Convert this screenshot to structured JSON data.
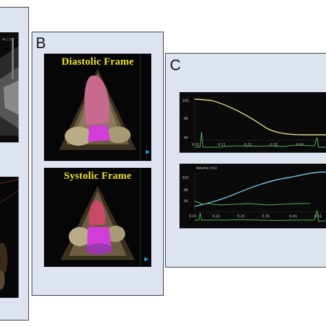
{
  "panels": {
    "a": {
      "scale_text": "MI 1.0"
    },
    "b": {
      "letter": "B",
      "diastolic_label": "Diastolic Frame",
      "systolic_label": "Systolic Frame"
    },
    "c": {
      "letter": "C",
      "top_plot": {
        "y_ticks": [
          "192",
          "96",
          "40"
        ],
        "x_ticks": [
          "0.01",
          "0.11",
          "0.21",
          "0.31",
          "0.41"
        ]
      },
      "bottom_plot": {
        "title": "Volume (ml)",
        "y_ticks": [
          "192",
          "96",
          "56"
        ],
        "x_ticks": [
          "0.01",
          "0.11",
          "0.21",
          "0.31",
          "0.41",
          "0.51"
        ]
      }
    }
  },
  "colors": {
    "panel_bg": "#dde4ef",
    "label_yellow": "#f3e11c",
    "lv_pink": "#c86a8e",
    "la_magenta": "#d23cd8",
    "curve_yellow": "#e6e08a",
    "curve_blue": "#7cc6e8",
    "ecg_green": "#4fb84a"
  }
}
